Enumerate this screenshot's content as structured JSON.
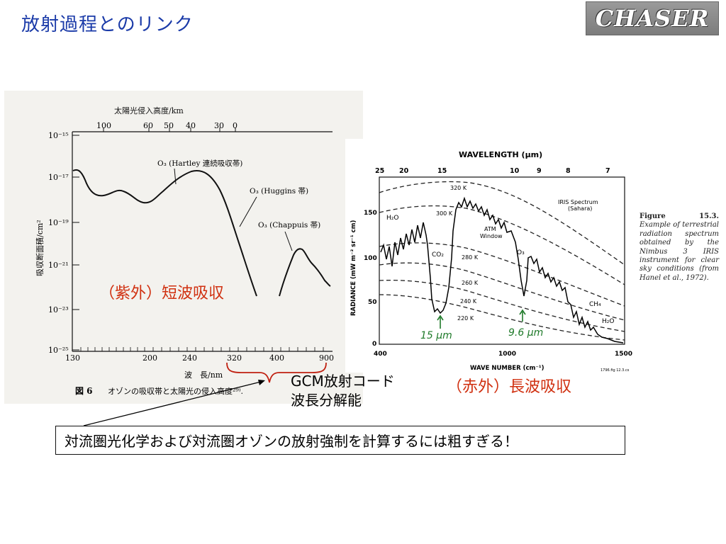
{
  "slide": {
    "title": "放射過程とのリンク",
    "logo_text": "CHASER"
  },
  "left_figure": {
    "top_axis_title": "太陽光侵入高度/km",
    "top_axis_ticks": [
      "100",
      "60",
      "50",
      "40",
      "30",
      "0"
    ],
    "y_axis_label": "吸収断面積/cm²",
    "y_ticks": [
      "10⁻¹⁵",
      "10⁻¹⁷",
      "10⁻¹⁹",
      "10⁻²¹",
      "10⁻²³",
      "10⁻²⁵"
    ],
    "x_ticks": [
      "130",
      "200",
      "240",
      "320",
      "400",
      "900"
    ],
    "x_axis_label": "波　長/nm",
    "annotations": [
      "O₃ (Hartley 連続吸収帯)",
      "O₃ (Huggins 帯)",
      "O₃ (Chappuis 帯)"
    ],
    "caption_label": "図 6",
    "caption_text": "オゾンの吸収帯と太陽光の侵入高度²⁹⁾."
  },
  "right_figure": {
    "top_axis_title": "WAVELENGTH (μm)",
    "top_ticks": [
      "25",
      "20",
      "15",
      "10",
      "9",
      "8",
      "7"
    ],
    "y_axis_label": "RADIANCE (mW m⁻² sr⁻¹ cm)",
    "y_ticks": [
      "150",
      "100",
      "50",
      "0"
    ],
    "x_ticks": [
      "400",
      "1000",
      "1500"
    ],
    "x_axis_label": "WAVE NUMBER (cm⁻¹)",
    "temperatures": [
      "320 K",
      "300 K",
      "280 K",
      "260 K",
      "240 K",
      "220 K"
    ],
    "species": [
      "H₂O",
      "CO₂",
      "O₃",
      "CH₄",
      "H₂O"
    ],
    "window_label": [
      "ATM",
      "Window"
    ],
    "legend": [
      "IRIS Spectrum",
      "(Sahara)"
    ],
    "handwritten": [
      "15 μm",
      "9.6 μm"
    ],
    "corner_code": "1796.fig 12.3.cs"
  },
  "caption_right": {
    "figure_label": "Figure 15.3.",
    "text": "Example of terrestrial radiation spectrum obtained by the Nimbus 3 IRIS instrument for clear sky conditions (from Hanel et al., 1972)."
  },
  "labels": {
    "uv": "（紫外）短波吸収",
    "ir": "（赤外）長波吸収",
    "gcm_line1": "GCM放射コード",
    "gcm_line2": "波長分解能",
    "note": "対流圏光化学および対流圏オゾンの放射強制を計算するには粗すぎる！"
  },
  "colors": {
    "title": "#1a3aa8",
    "accent_red": "#d03010",
    "bracket": "#c02010",
    "handwriting_green": "#1f7a2a"
  }
}
